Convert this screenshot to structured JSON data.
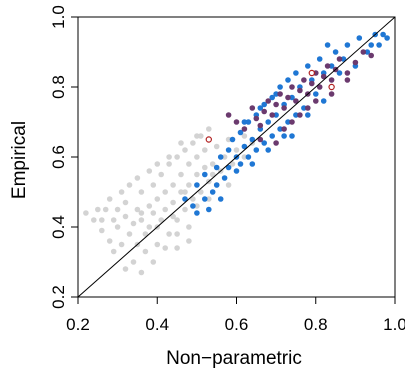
{
  "chart_data": {
    "type": "scatter",
    "title": "",
    "xlabel": "Non−parametric",
    "ylabel": "Empirical",
    "xlim": [
      0.2,
      1.0
    ],
    "ylim": [
      0.2,
      1.0
    ],
    "xticks": [
      "0.2",
      "0.4",
      "0.6",
      "0.8",
      "1.0"
    ],
    "yticks": [
      "0.2",
      "0.4",
      "0.6",
      "0.8",
      "1.0"
    ],
    "grid": false,
    "legend": "none",
    "reference_line": {
      "from": [
        0.2,
        0.2
      ],
      "to": [
        1.0,
        1.0
      ],
      "color": "#000000"
    },
    "colors": {
      "gray": "#d3d3d3",
      "blue": "#1f77d4",
      "purple": "#6b3a6e",
      "red_ring": "#b22222"
    },
    "series": [
      {
        "color_key": "gray",
        "points": [
          [
            0.22,
            0.44
          ],
          [
            0.24,
            0.42
          ],
          [
            0.25,
            0.45
          ],
          [
            0.26,
            0.39
          ],
          [
            0.27,
            0.45
          ],
          [
            0.28,
            0.48
          ],
          [
            0.28,
            0.36
          ],
          [
            0.29,
            0.42
          ],
          [
            0.3,
            0.45
          ],
          [
            0.3,
            0.4
          ],
          [
            0.31,
            0.5
          ],
          [
            0.31,
            0.35
          ],
          [
            0.32,
            0.43
          ],
          [
            0.32,
            0.47
          ],
          [
            0.33,
            0.38
          ],
          [
            0.33,
            0.52
          ],
          [
            0.34,
            0.41
          ],
          [
            0.34,
            0.3
          ],
          [
            0.35,
            0.45
          ],
          [
            0.35,
            0.35
          ],
          [
            0.36,
            0.42
          ],
          [
            0.36,
            0.5
          ],
          [
            0.37,
            0.38
          ],
          [
            0.37,
            0.33
          ],
          [
            0.38,
            0.46
          ],
          [
            0.38,
            0.4
          ],
          [
            0.39,
            0.52
          ],
          [
            0.39,
            0.44
          ],
          [
            0.4,
            0.35
          ],
          [
            0.4,
            0.48
          ],
          [
            0.41,
            0.42
          ],
          [
            0.41,
            0.55
          ],
          [
            0.42,
            0.45
          ],
          [
            0.42,
            0.5
          ],
          [
            0.43,
            0.38
          ],
          [
            0.43,
            0.58
          ],
          [
            0.44,
            0.47
          ],
          [
            0.44,
            0.52
          ],
          [
            0.45,
            0.42
          ],
          [
            0.45,
            0.6
          ],
          [
            0.46,
            0.5
          ],
          [
            0.46,
            0.55
          ],
          [
            0.47,
            0.45
          ],
          [
            0.47,
            0.62
          ],
          [
            0.48,
            0.52
          ],
          [
            0.48,
            0.58
          ],
          [
            0.49,
            0.48
          ],
          [
            0.49,
            0.64
          ],
          [
            0.5,
            0.55
          ],
          [
            0.5,
            0.6
          ],
          [
            0.51,
            0.5
          ],
          [
            0.51,
            0.66
          ],
          [
            0.52,
            0.57
          ],
          [
            0.52,
            0.62
          ],
          [
            0.53,
            0.53
          ],
          [
            0.53,
            0.68
          ],
          [
            0.54,
            0.58
          ],
          [
            0.55,
            0.63
          ],
          [
            0.56,
            0.56
          ],
          [
            0.57,
            0.6
          ],
          [
            0.58,
            0.65
          ],
          [
            0.59,
            0.58
          ],
          [
            0.6,
            0.62
          ],
          [
            0.62,
            0.66
          ],
          [
            0.64,
            0.64
          ],
          [
            0.29,
            0.33
          ],
          [
            0.32,
            0.28
          ],
          [
            0.36,
            0.27
          ],
          [
            0.39,
            0.3
          ],
          [
            0.42,
            0.34
          ],
          [
            0.45,
            0.38
          ],
          [
            0.48,
            0.4
          ],
          [
            0.36,
            0.44
          ],
          [
            0.4,
            0.4
          ],
          [
            0.44,
            0.43
          ],
          [
            0.47,
            0.5
          ],
          [
            0.5,
            0.46
          ],
          [
            0.53,
            0.48
          ],
          [
            0.26,
            0.42
          ],
          [
            0.35,
            0.54
          ],
          [
            0.38,
            0.56
          ],
          [
            0.4,
            0.58
          ],
          [
            0.43,
            0.6
          ],
          [
            0.46,
            0.64
          ],
          [
            0.5,
            0.66
          ],
          [
            0.54,
            0.55
          ],
          [
            0.58,
            0.52
          ],
          [
            0.62,
            0.6
          ],
          [
            0.55,
            0.52
          ],
          [
            0.48,
            0.36
          ],
          [
            0.45,
            0.34
          ]
        ]
      },
      {
        "color_key": "blue",
        "points": [
          [
            0.47,
            0.48
          ],
          [
            0.49,
            0.46
          ],
          [
            0.5,
            0.44
          ],
          [
            0.5,
            0.52
          ],
          [
            0.52,
            0.48
          ],
          [
            0.52,
            0.55
          ],
          [
            0.54,
            0.5
          ],
          [
            0.55,
            0.57
          ],
          [
            0.55,
            0.52
          ],
          [
            0.56,
            0.6
          ],
          [
            0.57,
            0.54
          ],
          [
            0.58,
            0.62
          ],
          [
            0.58,
            0.57
          ],
          [
            0.59,
            0.65
          ],
          [
            0.6,
            0.6
          ],
          [
            0.61,
            0.58
          ],
          [
            0.61,
            0.67
          ],
          [
            0.62,
            0.63
          ],
          [
            0.63,
            0.6
          ],
          [
            0.63,
            0.7
          ],
          [
            0.64,
            0.65
          ],
          [
            0.65,
            0.62
          ],
          [
            0.65,
            0.72
          ],
          [
            0.66,
            0.68
          ],
          [
            0.67,
            0.64
          ],
          [
            0.67,
            0.75
          ],
          [
            0.68,
            0.7
          ],
          [
            0.69,
            0.66
          ],
          [
            0.69,
            0.77
          ],
          [
            0.7,
            0.72
          ],
          [
            0.71,
            0.68
          ],
          [
            0.71,
            0.8
          ],
          [
            0.72,
            0.75
          ],
          [
            0.73,
            0.7
          ],
          [
            0.73,
            0.82
          ],
          [
            0.74,
            0.77
          ],
          [
            0.75,
            0.72
          ],
          [
            0.75,
            0.84
          ],
          [
            0.76,
            0.8
          ],
          [
            0.77,
            0.74
          ],
          [
            0.78,
            0.86
          ],
          [
            0.79,
            0.82
          ],
          [
            0.8,
            0.78
          ],
          [
            0.81,
            0.88
          ],
          [
            0.82,
            0.84
          ],
          [
            0.84,
            0.86
          ],
          [
            0.85,
            0.9
          ],
          [
            0.87,
            0.88
          ],
          [
            0.88,
            0.92
          ],
          [
            0.9,
            0.86
          ],
          [
            0.91,
            0.94
          ],
          [
            0.93,
            0.9
          ],
          [
            0.94,
            0.92
          ],
          [
            0.95,
            0.95
          ],
          [
            0.96,
            0.92
          ],
          [
            0.97,
            0.95
          ],
          [
            0.98,
            0.94
          ],
          [
            0.53,
            0.45
          ],
          [
            0.56,
            0.48
          ],
          [
            0.6,
            0.56
          ],
          [
            0.64,
            0.58
          ],
          [
            0.68,
            0.62
          ],
          [
            0.72,
            0.66
          ],
          [
            0.62,
            0.7
          ],
          [
            0.66,
            0.74
          ],
          [
            0.7,
            0.78
          ],
          [
            0.74,
            0.66
          ],
          [
            0.78,
            0.72
          ],
          [
            0.82,
            0.76
          ],
          [
            0.86,
            0.84
          ],
          [
            0.83,
            0.92
          ]
        ]
      },
      {
        "color_key": "purple",
        "points": [
          [
            0.58,
            0.72
          ],
          [
            0.6,
            0.7
          ],
          [
            0.62,
            0.68
          ],
          [
            0.64,
            0.74
          ],
          [
            0.65,
            0.71
          ],
          [
            0.66,
            0.69
          ],
          [
            0.67,
            0.73
          ],
          [
            0.68,
            0.76
          ],
          [
            0.69,
            0.72
          ],
          [
            0.7,
            0.75
          ],
          [
            0.71,
            0.78
          ],
          [
            0.72,
            0.74
          ],
          [
            0.73,
            0.77
          ],
          [
            0.74,
            0.8
          ],
          [
            0.75,
            0.76
          ],
          [
            0.76,
            0.79
          ],
          [
            0.77,
            0.82
          ],
          [
            0.78,
            0.78
          ],
          [
            0.79,
            0.81
          ],
          [
            0.8,
            0.84
          ],
          [
            0.81,
            0.8
          ],
          [
            0.82,
            0.83
          ],
          [
            0.83,
            0.86
          ],
          [
            0.84,
            0.82
          ],
          [
            0.85,
            0.85
          ],
          [
            0.86,
            0.88
          ],
          [
            0.88,
            0.84
          ],
          [
            0.9,
            0.87
          ],
          [
            0.92,
            0.9
          ],
          [
            0.94,
            0.89
          ],
          [
            0.72,
            0.68
          ],
          [
            0.76,
            0.72
          ],
          [
            0.8,
            0.76
          ],
          [
            0.84,
            0.78
          ],
          [
            0.88,
            0.82
          ],
          [
            0.66,
            0.65
          ],
          [
            0.7,
            0.64
          ],
          [
            0.74,
            0.7
          ],
          [
            0.78,
            0.74
          ]
        ]
      },
      {
        "color_key": "red_ring",
        "points": [
          [
            0.53,
            0.65
          ],
          [
            0.79,
            0.84
          ],
          [
            0.84,
            0.8
          ]
        ]
      }
    ]
  }
}
